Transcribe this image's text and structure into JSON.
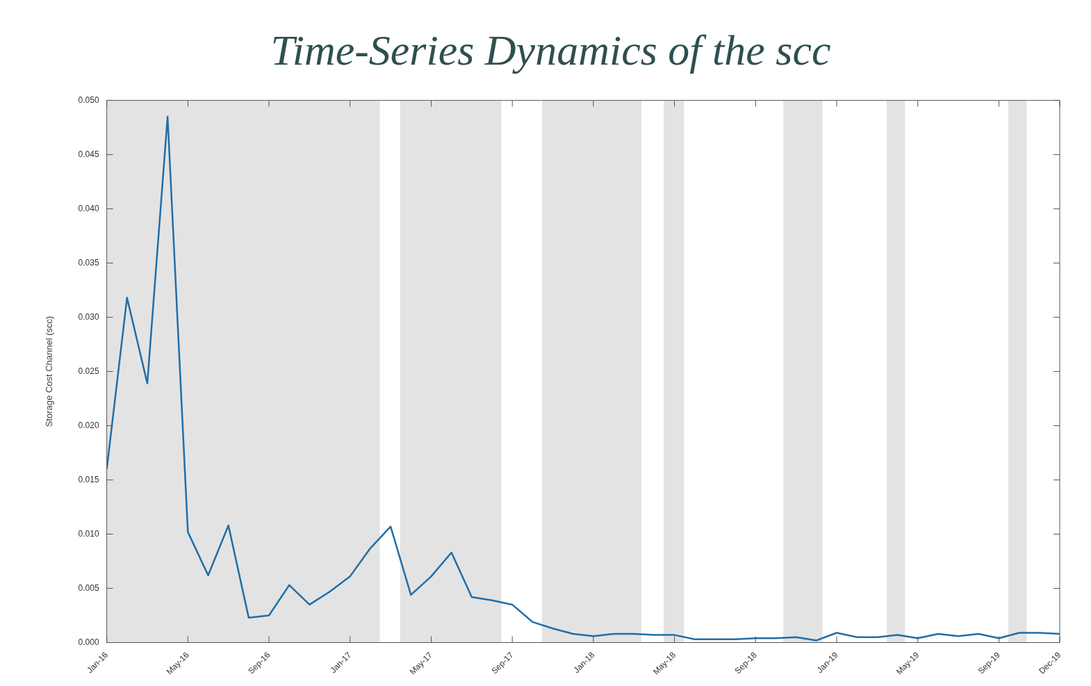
{
  "chart_data": {
    "type": "line",
    "title": "Time-Series Dynamics of the scc",
    "ylabel": "Storage Cost Channel (scc)",
    "x": [
      "2016-01",
      "2016-02",
      "2016-03",
      "2016-04",
      "2016-05",
      "2016-06",
      "2016-07",
      "2016-08",
      "2016-09",
      "2016-10",
      "2016-11",
      "2016-12",
      "2017-01",
      "2017-02",
      "2017-03",
      "2017-04",
      "2017-05",
      "2017-06",
      "2017-07",
      "2017-08",
      "2017-09",
      "2017-10",
      "2017-11",
      "2017-12",
      "2018-01",
      "2018-02",
      "2018-03",
      "2018-04",
      "2018-05",
      "2018-06",
      "2018-07",
      "2018-08",
      "2018-09",
      "2018-10",
      "2018-11",
      "2018-12",
      "2019-01",
      "2019-02",
      "2019-03",
      "2019-04",
      "2019-05",
      "2019-06",
      "2019-07",
      "2019-08",
      "2019-09",
      "2019-10",
      "2019-11",
      "2019-12"
    ],
    "series": [
      {
        "color": "#1f6ea8",
        "values": [
          0.016,
          0.0318,
          0.0239,
          0.0485,
          0.0102,
          0.0062,
          0.0108,
          0.0023,
          0.0025,
          0.0053,
          0.0035,
          0.0047,
          0.0061,
          0.0087,
          0.0107,
          0.0044,
          0.0061,
          0.0083,
          0.0042,
          0.0039,
          0.0035,
          0.0019,
          0.0013,
          0.0008,
          0.0006,
          0.0008,
          0.0008,
          0.0007,
          0.0007,
          0.0003,
          0.0003,
          0.0003,
          0.0004,
          0.0004,
          0.0005,
          0.0002,
          0.0009,
          0.0005,
          0.0005,
          0.0007,
          0.0004,
          0.0008,
          0.0006,
          0.0008,
          0.0004,
          0.0009,
          0.0009,
          0.0008
        ]
      }
    ],
    "xlim": [
      "2016-01",
      "2019-12"
    ],
    "xticks": [
      {
        "value": "2016-01",
        "label": "Jan-16"
      },
      {
        "value": "2016-05",
        "label": "May-16"
      },
      {
        "value": "2016-09",
        "label": "Sep-16"
      },
      {
        "value": "2017-01",
        "label": "Jan-17"
      },
      {
        "value": "2017-05",
        "label": "May-17"
      },
      {
        "value": "2017-09",
        "label": "Sep-17"
      },
      {
        "value": "2018-01",
        "label": "Jan-18"
      },
      {
        "value": "2018-05",
        "label": "May-18"
      },
      {
        "value": "2018-09",
        "label": "Sep-18"
      },
      {
        "value": "2019-01",
        "label": "Jan-19"
      },
      {
        "value": "2019-05",
        "label": "May-19"
      },
      {
        "value": "2019-09",
        "label": "Sep-19"
      },
      {
        "value": "2019-12",
        "label": "Dec-19"
      }
    ],
    "ylim": [
      0,
      0.05
    ],
    "yticks": [
      {
        "value": 0,
        "label": "0.000"
      },
      {
        "value": 0.005,
        "label": "0.005"
      },
      {
        "value": 0.01,
        "label": "0.010"
      },
      {
        "value": 0.015,
        "label": "0.015"
      },
      {
        "value": 0.02,
        "label": "0.020"
      },
      {
        "value": 0.025,
        "label": "0.025"
      },
      {
        "value": 0.03,
        "label": "0.030"
      },
      {
        "value": 0.035,
        "label": "0.035"
      },
      {
        "value": 0.04,
        "label": "0.040"
      },
      {
        "value": 0.045,
        "label": "0.045"
      },
      {
        "value": 0.05,
        "label": "0.050"
      }
    ],
    "bands": [
      {
        "axis": "x",
        "from": "2016-01",
        "to": "2017-02-15",
        "color": "#e3e3e3"
      },
      {
        "axis": "x",
        "from": "2017-03-15",
        "to": "2017-08-15",
        "color": "#e3e3e3"
      },
      {
        "axis": "x",
        "from": "2017-10-15",
        "to": "2018-03-12",
        "color": "#e3e3e3"
      },
      {
        "axis": "x",
        "from": "2018-04-15",
        "to": "2018-05-15",
        "color": "#e3e3e3"
      },
      {
        "axis": "x",
        "from": "2018-10-12",
        "to": "2018-12-10",
        "color": "#e3e3e3"
      },
      {
        "axis": "x",
        "from": "2019-03-15",
        "to": "2019-04-12",
        "color": "#e3e3e3"
      },
      {
        "axis": "x",
        "from": "2019-09-15",
        "to": "2019-10-12",
        "color": "#e3e3e3"
      }
    ]
  }
}
